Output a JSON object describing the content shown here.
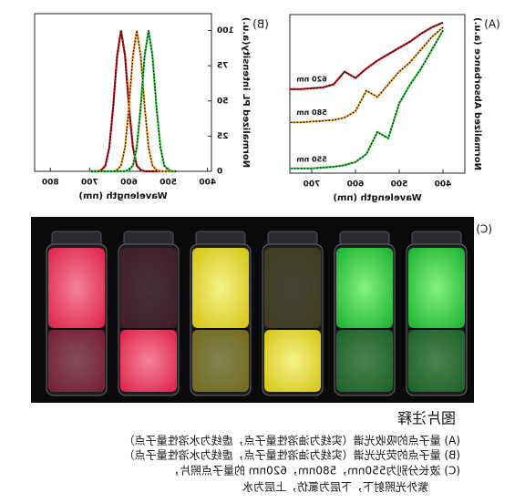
{
  "chart_data": [
    {
      "type": "line",
      "panel_label": "(A)",
      "xlabel": "Wavelength (nm)",
      "ylabel": "Normalized Absorbance (a.u.)",
      "x": [
        400,
        425,
        450,
        475,
        500,
        525,
        550,
        575,
        600,
        625,
        650,
        675,
        700,
        725,
        750
      ],
      "xlim": [
        350,
        750
      ],
      "xticks": [
        400,
        500,
        600,
        700
      ],
      "ylim": [
        0,
        10
      ],
      "series": [
        {
          "name": "620 nm",
          "color": "#c0161b",
          "values": [
            9.5,
            9.2,
            8.8,
            8.3,
            7.9,
            7.5,
            7.1,
            6.6,
            6.0,
            6.4,
            5.6,
            5.4,
            5.35,
            5.3,
            5.3
          ]
        },
        {
          "name": "580 nm",
          "color": "#f39c2c",
          "values": [
            9.2,
            8.6,
            7.8,
            7.0,
            6.4,
            5.6,
            4.8,
            5.2,
            3.9,
            3.5,
            3.35,
            3.3,
            3.25,
            3.2,
            3.2
          ]
        },
        {
          "name": "550 nm",
          "color": "#2ecc40",
          "values": [
            9.0,
            7.8,
            6.6,
            5.6,
            4.4,
            2.2,
            2.6,
            1.2,
            0.7,
            0.5,
            0.4,
            0.35,
            0.3,
            0.3,
            0.3
          ]
        }
      ]
    },
    {
      "type": "line",
      "panel_label": "(B)",
      "xlabel": "Wavelength (nm)",
      "ylabel": "Normalized PL intensity(a.u.)",
      "x": [
        480,
        490,
        500,
        510,
        520,
        530,
        540,
        550,
        560,
        570,
        580,
        590,
        600,
        610,
        620,
        630,
        640,
        650,
        660,
        670,
        680,
        690,
        700
      ],
      "xlim": [
        390,
        840
      ],
      "xticks": [
        400,
        500,
        600,
        700,
        800
      ],
      "ylim": [
        0,
        112
      ],
      "yticks": [
        0,
        25,
        50,
        75,
        100
      ],
      "series": [
        {
          "color": "#c0161b",
          "values": [
            0,
            0,
            0,
            0,
            0,
            0,
            0,
            0,
            0,
            1,
            4,
            17,
            46,
            82,
            100,
            82,
            46,
            17,
            4,
            1,
            0,
            0,
            0
          ]
        },
        {
          "color": "#f39c2c",
          "values": [
            0,
            0,
            0,
            0,
            0,
            1,
            4,
            17,
            46,
            82,
            100,
            82,
            46,
            17,
            4,
            1,
            0,
            0,
            0,
            0,
            0,
            0,
            0
          ]
        },
        {
          "color": "#2ecc40",
          "values": [
            0,
            0,
            1,
            4,
            17,
            46,
            82,
            100,
            82,
            46,
            17,
            4,
            1,
            0,
            0,
            0,
            0,
            0,
            0,
            0,
            0,
            0,
            0
          ]
        }
      ]
    }
  ],
  "photo": {
    "label": "(C)"
  },
  "caption": {
    "title": "图片注释",
    "lines": [
      "(A) 量子点的吸收光谱（实线为油溶性量子点，虚线为水溶性量子点）",
      "(B) 量子点的荧光光谱（实线为油溶性量子点，虚线为水溶性量子点）",
      "(C) 波长分别为550nm，580nm，620nm 的量子点照片，",
      "紫外光照射下，下层为氯仿，上层为水"
    ]
  }
}
